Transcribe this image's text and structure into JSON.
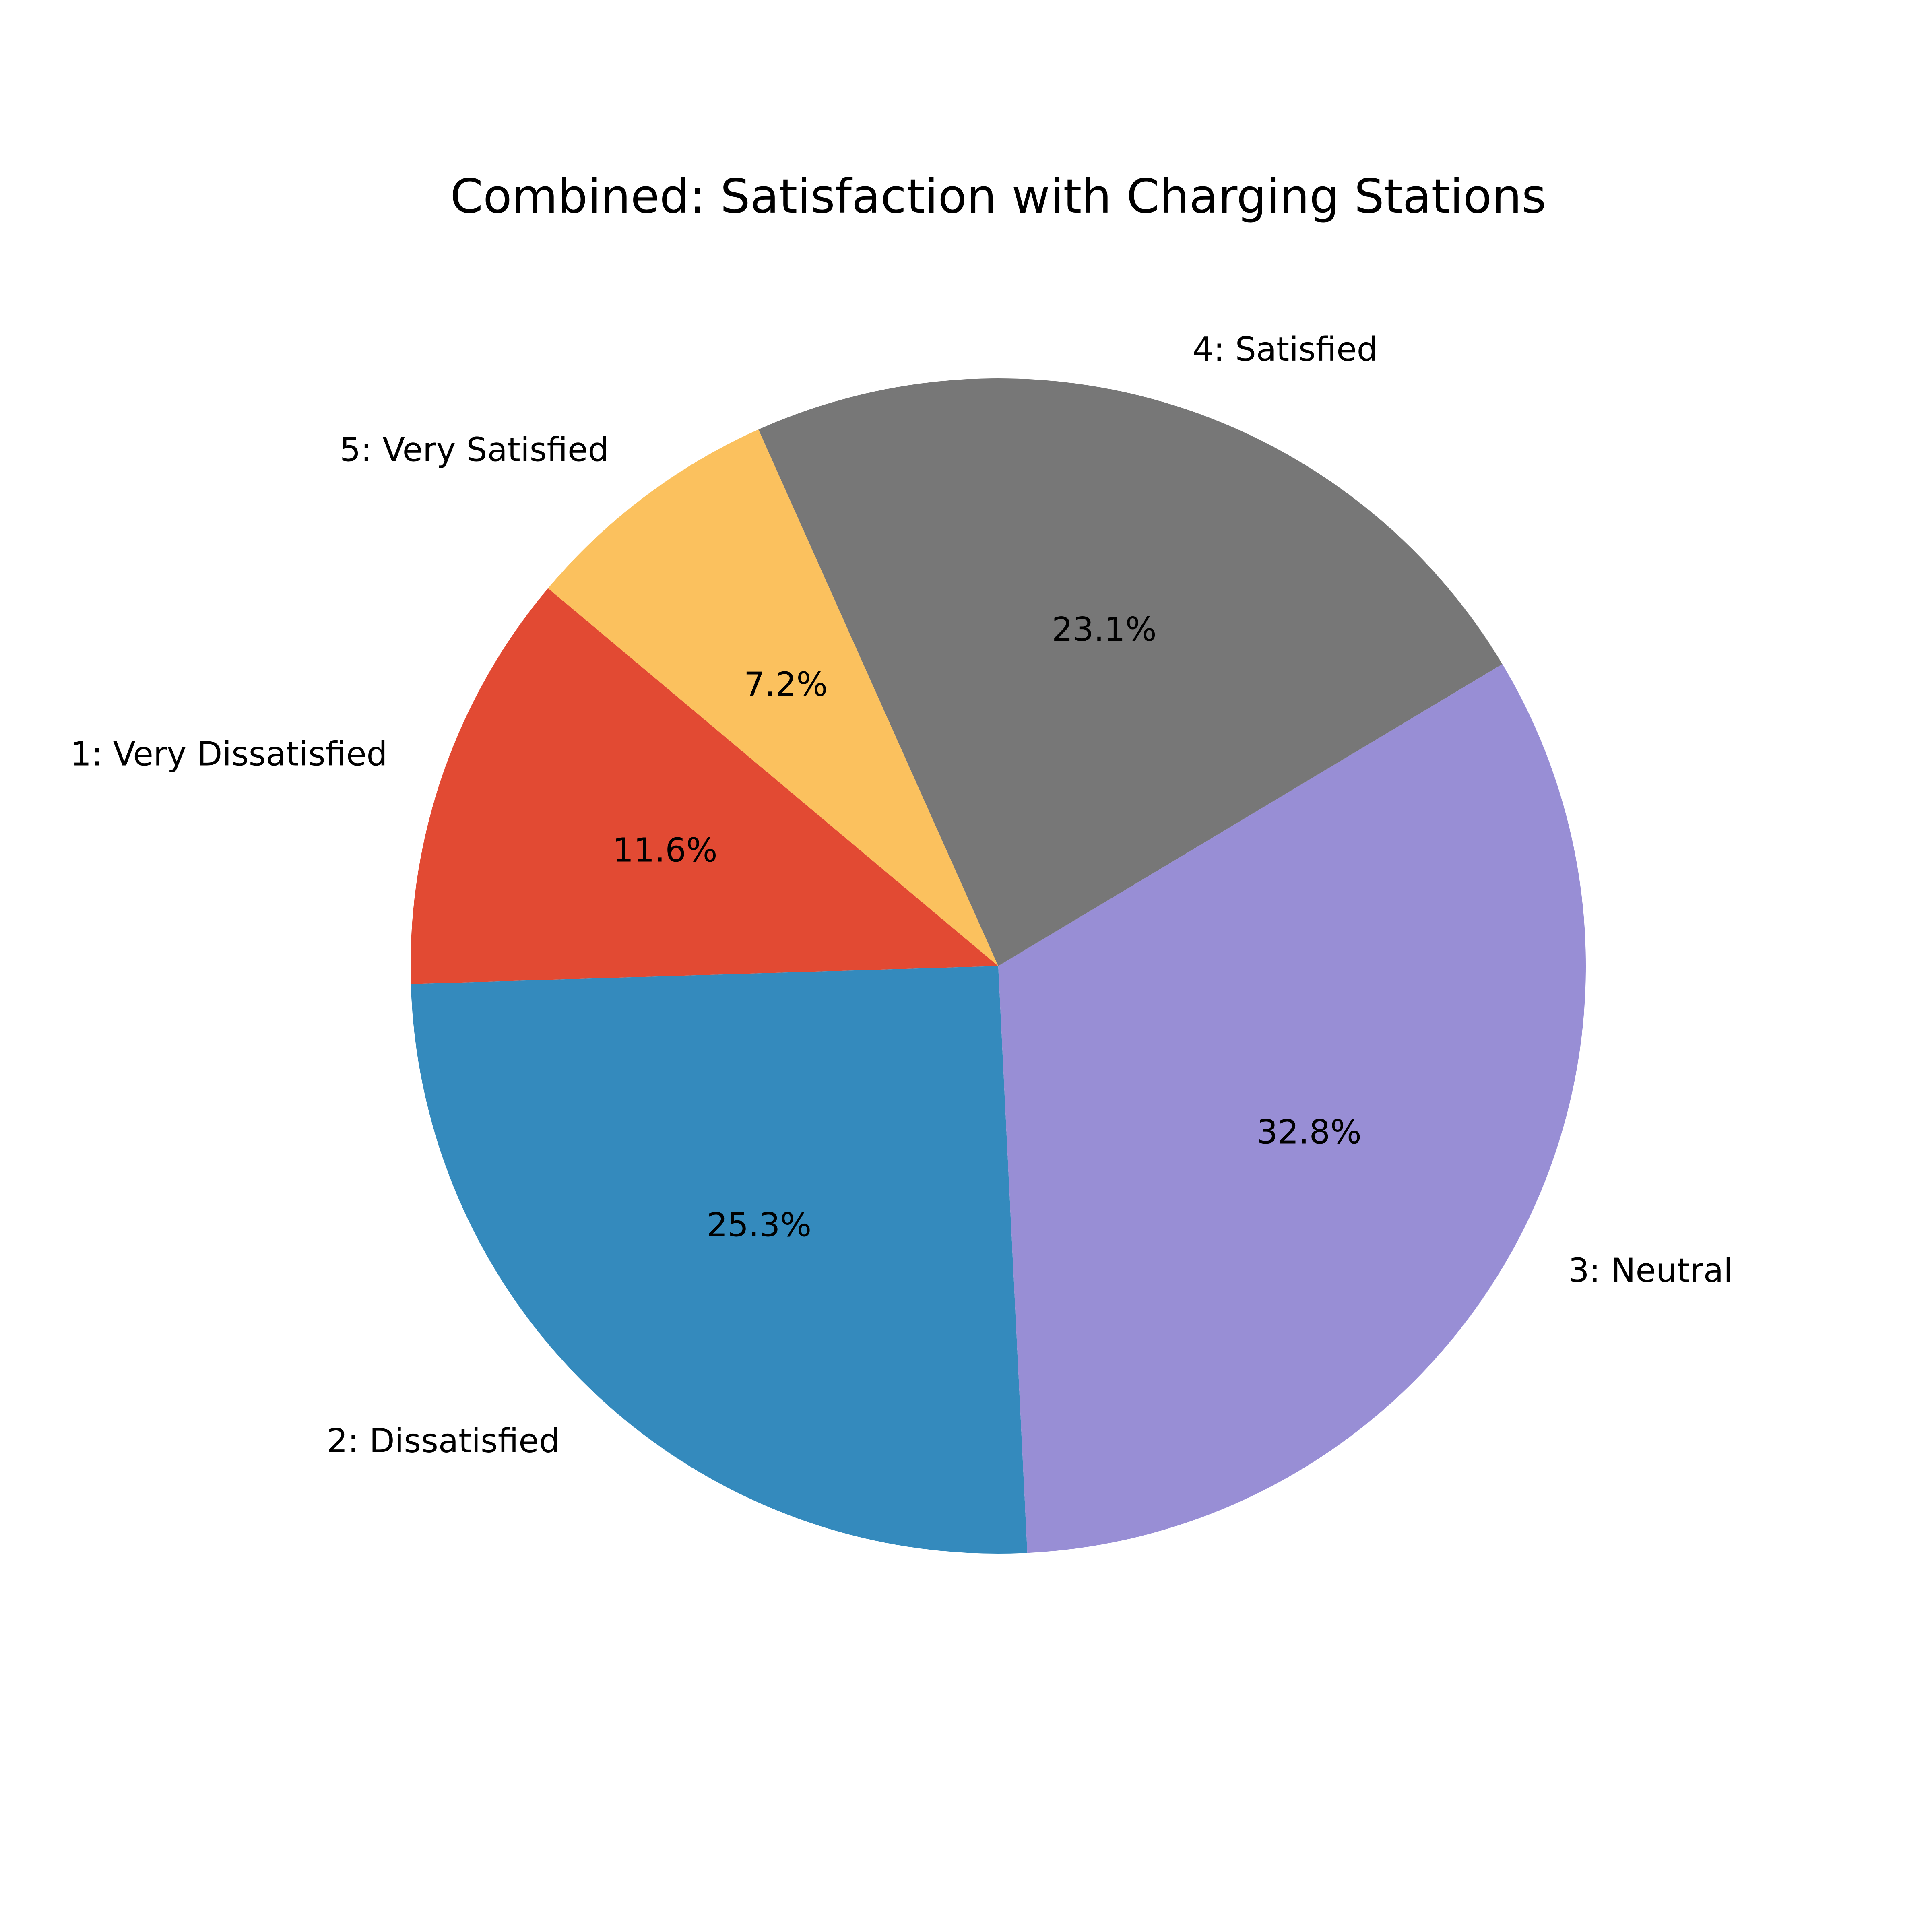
{
  "chart_data": {
    "type": "pie",
    "title": "Combined: Satisfaction with Charging Stations",
    "slices": [
      {
        "label": "1: Very Dissatisfied",
        "value": 11.6,
        "pct_label": "11.6%",
        "color": "#E24A33"
      },
      {
        "label": "2: Dissatisfied",
        "value": 25.3,
        "pct_label": "25.3%",
        "color": "#348ABD"
      },
      {
        "label": "3: Neutral",
        "value": 32.8,
        "pct_label": "32.8%",
        "color": "#988ED5"
      },
      {
        "label": "4: Satisfied",
        "value": 23.1,
        "pct_label": "23.1%",
        "color": "#777777"
      },
      {
        "label": "5: Very Satisfied",
        "value": 7.2,
        "pct_label": "7.2%",
        "color": "#FBC15E"
      }
    ],
    "start_angle_deg": 140,
    "direction": "counterclockwise",
    "legend": "none"
  }
}
